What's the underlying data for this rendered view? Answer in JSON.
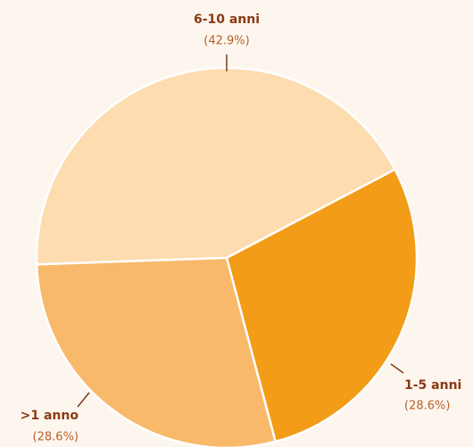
{
  "chart_data": {
    "type": "pie",
    "categories": [
      "6-10 anni",
      "1-5 anni",
      ">1 anno"
    ],
    "values": [
      42.9,
      28.6,
      28.6
    ],
    "value_labels": [
      "(42.9%)",
      "(28.6%)",
      "(28.6%)"
    ],
    "colors": [
      "#fddcb0",
      "#f39c17",
      "#f8b96a"
    ]
  }
}
